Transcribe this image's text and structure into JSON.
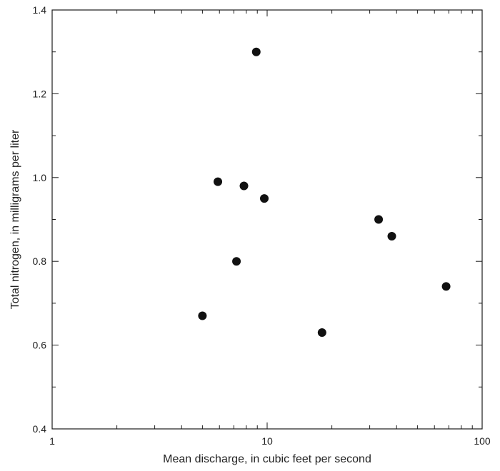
{
  "chart_data": {
    "type": "scatter",
    "title": "",
    "xlabel": "Mean discharge, in cubic feet per second",
    "ylabel": "Total nitrogen, in milligrams per liter",
    "x_scale": "log",
    "xlim": [
      1,
      100
    ],
    "ylim": [
      0.4,
      1.4
    ],
    "x_ticks": [
      1,
      10,
      100
    ],
    "x_tick_labels": [
      "1",
      "10",
      "100"
    ],
    "y_ticks": [
      0.4,
      0.6,
      0.8,
      1.0,
      1.2,
      1.4
    ],
    "y_tick_labels": [
      "0.4",
      "0.6",
      "0.8",
      "1.0",
      "1.2",
      "1.4"
    ],
    "grid": false,
    "marker_color": "#111111",
    "series": [
      {
        "points": [
          {
            "x": 5.0,
            "y": 0.67
          },
          {
            "x": 5.9,
            "y": 0.99
          },
          {
            "x": 7.2,
            "y": 0.8
          },
          {
            "x": 7.8,
            "y": 0.98
          },
          {
            "x": 8.9,
            "y": 1.3
          },
          {
            "x": 9.7,
            "y": 0.95
          },
          {
            "x": 18.0,
            "y": 0.63
          },
          {
            "x": 33.0,
            "y": 0.9
          },
          {
            "x": 38.0,
            "y": 0.86
          },
          {
            "x": 68.0,
            "y": 0.74
          }
        ]
      }
    ]
  }
}
